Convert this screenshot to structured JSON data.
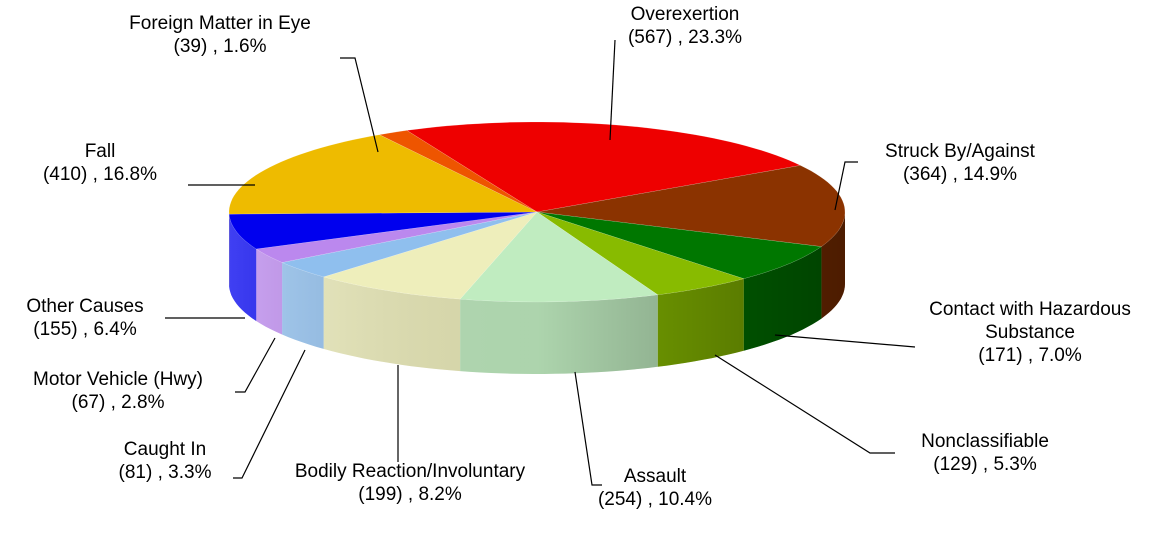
{
  "chart_data": {
    "type": "pie3d",
    "categories": [
      "Overexertion",
      "Struck By/Against",
      "Contact with Hazardous Substance",
      "Nonclassifiable",
      "Assault",
      "Bodily Reaction/Involuntary",
      "Caught In",
      "Motor Vehicle (Hwy)",
      "Other Causes",
      "Fall",
      "Foreign Matter in Eye"
    ],
    "values": [
      567,
      364,
      171,
      129,
      254,
      199,
      81,
      67,
      155,
      410,
      39
    ],
    "value_labels": [
      "(567) , 23.3%",
      "(364) , 14.9%",
      "(171) , 7.0%",
      "(129) , 5.3%",
      "(254) , 10.4%",
      "(199) , 8.2%",
      "(81) , 3.3%",
      "(67) , 2.8%",
      "(155) , 6.4%",
      "(410) , 16.8%",
      "(39) , 1.6%"
    ],
    "colors": [
      "#ee0000",
      "#8b3300",
      "#007700",
      "#88bb00",
      "#c0ecc0",
      "#eeeebb",
      "#8fbfee",
      "#bb88ee",
      "#0000ee",
      "#eebb00",
      "#ee5500"
    ]
  }
}
